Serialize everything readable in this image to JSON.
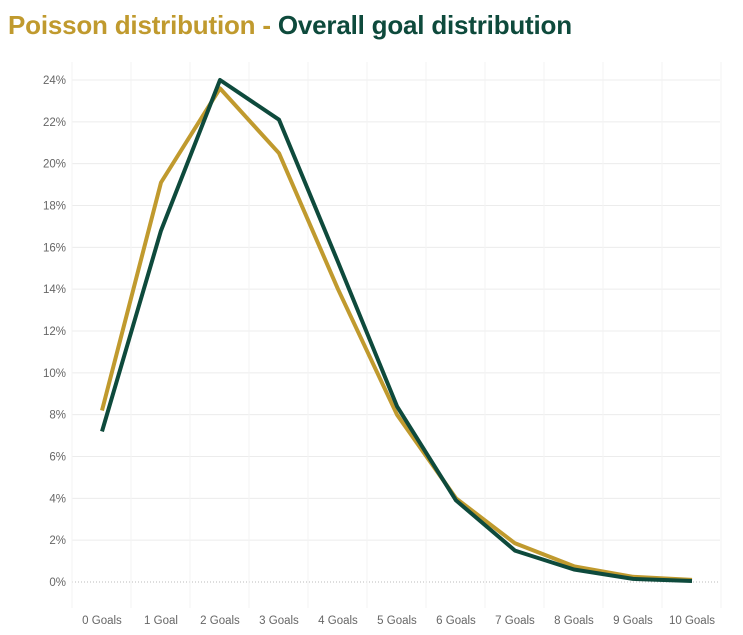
{
  "title": {
    "part1": "Poisson distribution",
    "separator": " - ",
    "part2": "Overall goal distribution"
  },
  "colors": {
    "poisson": "#C09A2E",
    "overall": "#0E4A3C",
    "grid": "#ececec",
    "tick": "#666666"
  },
  "chart_data": {
    "type": "line",
    "title": "Poisson distribution - Overall goal distribution",
    "xlabel": "",
    "ylabel": "",
    "categories": [
      "0 Goals",
      "1 Goal",
      "2 Goals",
      "3 Goals",
      "4 Goals",
      "5 Goals",
      "6 Goals",
      "7 Goals",
      "8 Goals",
      "9 Goals",
      "10 Goals"
    ],
    "ylim": [
      0,
      25
    ],
    "yticks": [
      0,
      2,
      4,
      6,
      8,
      10,
      12,
      14,
      16,
      18,
      20,
      22,
      24
    ],
    "ytick_labels": [
      "0%",
      "2%",
      "4%",
      "6%",
      "8%",
      "10%",
      "12%",
      "14%",
      "16%",
      "18%",
      "20%",
      "22%",
      "24%"
    ],
    "series": [
      {
        "name": "Poisson distribution",
        "color": "#C09A2E",
        "values": [
          8.2,
          19.1,
          23.6,
          20.5,
          14.0,
          8.0,
          4.0,
          1.85,
          0.75,
          0.25,
          0.1
        ]
      },
      {
        "name": "Overall goal distribution",
        "color": "#0E4A3C",
        "values": [
          7.2,
          16.8,
          24.0,
          22.1,
          15.3,
          8.4,
          3.9,
          1.5,
          0.6,
          0.15,
          0.05
        ]
      }
    ]
  }
}
